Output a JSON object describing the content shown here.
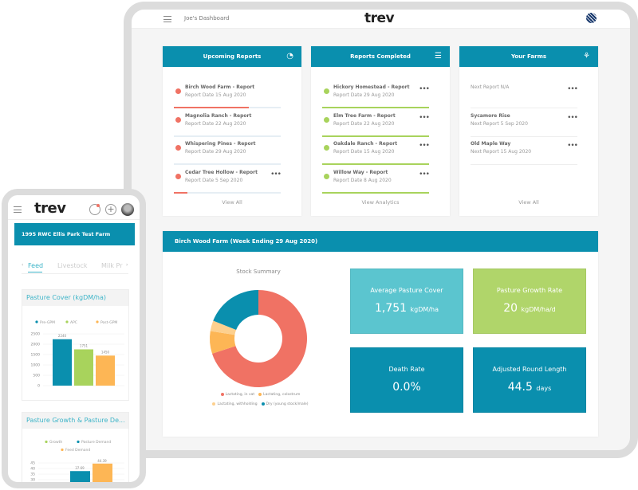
{
  "header": {
    "title": "Joe's Dashboard",
    "logo": "trev",
    "menu_icon": "hamburger-icon",
    "globe_icon": "globe-icon"
  },
  "upcoming": {
    "title": "Upcoming Reports",
    "icon": "pie-chart-icon",
    "link": "View All",
    "items": [
      {
        "name": "Birch Wood Farm - Report",
        "date": "Report Date 15 Aug 2020",
        "progress": 70
      },
      {
        "name": "Magnolia Ranch - Report",
        "date": "Report Date 22 Aug 2020",
        "progress": 0
      },
      {
        "name": "Whispering Pines - Report",
        "date": "Report Date 29 Aug 2020",
        "progress": 0
      },
      {
        "name": "Cedar Tree Hollow - Report",
        "date": "Report Date 5 Sep 2020",
        "progress": 13
      }
    ]
  },
  "completed": {
    "title": "Reports Completed",
    "icon": "checklist-icon",
    "link": "View Analytics",
    "items": [
      {
        "name": "Hickory Homestead - Report",
        "date": "Report Date 29 Aug 2020"
      },
      {
        "name": "Elm Tree Farm - Report",
        "date": "Report Date 22 Aug 2020"
      },
      {
        "name": "Oakdale Ranch - Report",
        "date": "Report Date 15 Aug 2020"
      },
      {
        "name": "Willow Way - Report",
        "date": "Report Date 8 Aug 2020"
      }
    ]
  },
  "farms": {
    "title": "Your Farms",
    "icon": "grass-icon",
    "link": "View All",
    "items": [
      {
        "name": "",
        "next": "Next Report N/A"
      },
      {
        "name": "Sycamore Rise",
        "next": "Next Report 5 Sep 2020"
      },
      {
        "name": "Old Maple Way",
        "next": "Next Report 15 Aug 2020"
      }
    ]
  },
  "more_label": "•••",
  "summary": {
    "title": "Birch Wood Farm (Week Ending 29 Aug 2020)",
    "tiles": [
      {
        "label": "Average Pasture Cover",
        "value": "1,751",
        "unit": "kgDM/ha",
        "color": "#5bc5cf"
      },
      {
        "label": "Pasture Growth Rate",
        "value": "20",
        "unit": "kgDM/ha/d",
        "color": "#b0d56a"
      },
      {
        "label": "Death Rate",
        "value": "0.0%",
        "unit": "",
        "color": "#0a8fae"
      },
      {
        "label": "Adjusted Round Length",
        "value": "44.5",
        "unit": "days",
        "color": "#0a8fae"
      }
    ]
  },
  "chart_data": [
    {
      "type": "pie",
      "title": "Stock Summary",
      "donut": true,
      "legend": "bottom",
      "categories": [
        "Lactating, in vat",
        "Lactating, colostrum",
        "Lactating, withholding",
        "Dry (young stock/male)"
      ],
      "values": [
        70,
        7.5,
        3.5,
        19
      ],
      "colors": [
        "#f07264",
        "#fdb655",
        "#fdd08e",
        "#0a8fae"
      ]
    },
    {
      "type": "bar",
      "title": "Pasture Cover (kgDM/ha)",
      "legend": "top",
      "ylim": [
        0,
        2500
      ],
      "yticks": [
        0,
        500,
        1000,
        1500,
        2000,
        2500
      ],
      "categories": [
        "Pre-GPM",
        "APC",
        "Post-GPM"
      ],
      "values": [
        2240,
        1751,
        1450
      ],
      "labels": [
        "2240",
        "1751",
        "1450"
      ],
      "colors": [
        "#0a8fae",
        "#a8d35c",
        "#fdb655"
      ]
    },
    {
      "type": "bar",
      "title": "Pasture Growth & Pasture De...",
      "legend": "top",
      "ylim": [
        30,
        45
      ],
      "yticks": [
        30,
        35,
        40,
        45
      ],
      "series": [
        {
          "name": "Growth",
          "color": "#a8d35c",
          "value": null
        },
        {
          "name": "Pasture Demand",
          "color": "#0a8fae",
          "value": 37.69,
          "label": "37.69"
        },
        {
          "name": "Feed Demand",
          "color": "#fdb655",
          "value": 44.39,
          "label": "44.39"
        }
      ]
    }
  ],
  "phone": {
    "logo": "trev",
    "farm": "1995 RWC Ellis Park Test Farm",
    "tabs": [
      "Feed",
      "Livestock",
      "Milk Pr"
    ],
    "active_tab": 0
  }
}
